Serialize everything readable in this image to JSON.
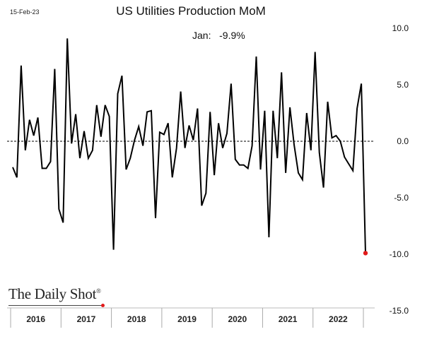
{
  "date_stamp": "15-Feb-23",
  "annotation": "Jan:   -9.9%",
  "source_logo": "The Daily Shot",
  "logo_mark": "®",
  "colors": {
    "line": "#000000",
    "highlight_point": "#e21b1b",
    "zero_line": "#000000",
    "axis": "#888888"
  },
  "chart_data": {
    "type": "line",
    "title": "US Utilities Production MoM",
    "xlabel": "",
    "ylabel": "",
    "ylim": [
      -15,
      10
    ],
    "yticks": [
      10,
      5,
      0,
      -5,
      -10,
      -15
    ],
    "ytick_labels": [
      "10.0",
      "5.0",
      "0.0",
      "-5.0",
      "-10.0",
      "-15.0"
    ],
    "x_start": "2016-01",
    "x_end": "2023-01",
    "year_labels": [
      "2016",
      "2017",
      "2018",
      "2019",
      "2020",
      "2021",
      "2022"
    ],
    "grid": false,
    "highlight_last_point": true,
    "series": [
      {
        "values": [
          -2.3,
          -3.2,
          6.7,
          -0.8,
          1.9,
          0.5,
          2.1,
          -2.4,
          -2.4,
          -1.8,
          6.4,
          -6.0,
          -7.2,
          9.1,
          -0.2,
          2.4,
          -1.5,
          0.9,
          -1.5,
          -0.8,
          3.2,
          0.4,
          3.2,
          2.2,
          -9.6,
          4.2,
          5.8,
          -2.5,
          -1.5,
          0.1,
          1.3,
          -0.4,
          2.6,
          2.7,
          -6.8,
          0.8,
          0.6,
          1.6,
          -3.2,
          -0.6,
          4.4,
          -0.6,
          1.4,
          0.1,
          2.9,
          -5.7,
          -4.6,
          2.6,
          -3.0,
          1.6,
          -0.6,
          0.7,
          5.1,
          -1.6,
          -2.1,
          -2.1,
          -2.4,
          -0.4,
          7.5,
          -2.5,
          2.7,
          -8.5,
          2.7,
          -1.5,
          6.1,
          -2.8,
          3.0,
          -0.3,
          -2.8,
          -3.4,
          2.5,
          -0.8,
          7.9,
          -1.0,
          -4.1,
          3.5,
          0.3,
          0.5,
          0.0,
          -1.4,
          -2.0,
          -2.6,
          2.9,
          5.1,
          -9.9
        ]
      }
    ]
  }
}
